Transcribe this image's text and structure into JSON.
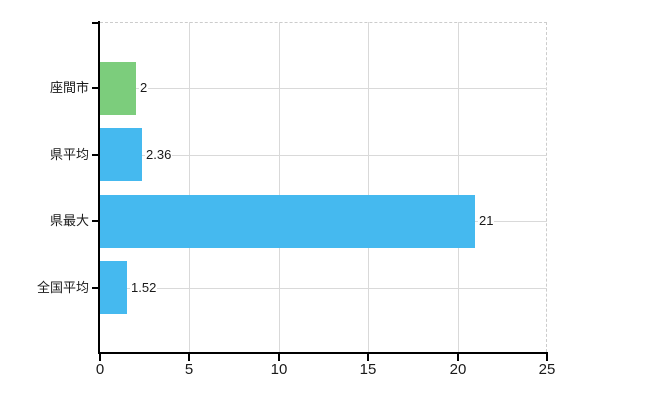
{
  "chart_data": {
    "type": "bar",
    "orientation": "horizontal",
    "title": "",
    "xlabel": "",
    "ylabel": "",
    "categories": [
      "座間市",
      "県平均",
      "県最大",
      "全国平均"
    ],
    "values": [
      2,
      2.36,
      21,
      1.52
    ],
    "value_labels": [
      "2",
      "2.36",
      "21",
      "1.52"
    ],
    "bar_colors": [
      "#7ccd7c",
      "#45b9ef",
      "#45b9ef",
      "#45b9ef"
    ],
    "xlim": [
      0,
      25
    ],
    "xticks": [
      0,
      5,
      10,
      15,
      20,
      25
    ],
    "xtick_labels": [
      "0",
      "5",
      "10",
      "15",
      "20",
      "25"
    ],
    "grid": true,
    "legend": false
  },
  "colors": {
    "background": "#ffffff",
    "axis": "#000000",
    "gridline": "#d9d9d9",
    "border_dashed": "#cccccc",
    "text": "#1a1a1a",
    "bar_green": "#7ccd7c",
    "bar_blue": "#45b9ef"
  }
}
